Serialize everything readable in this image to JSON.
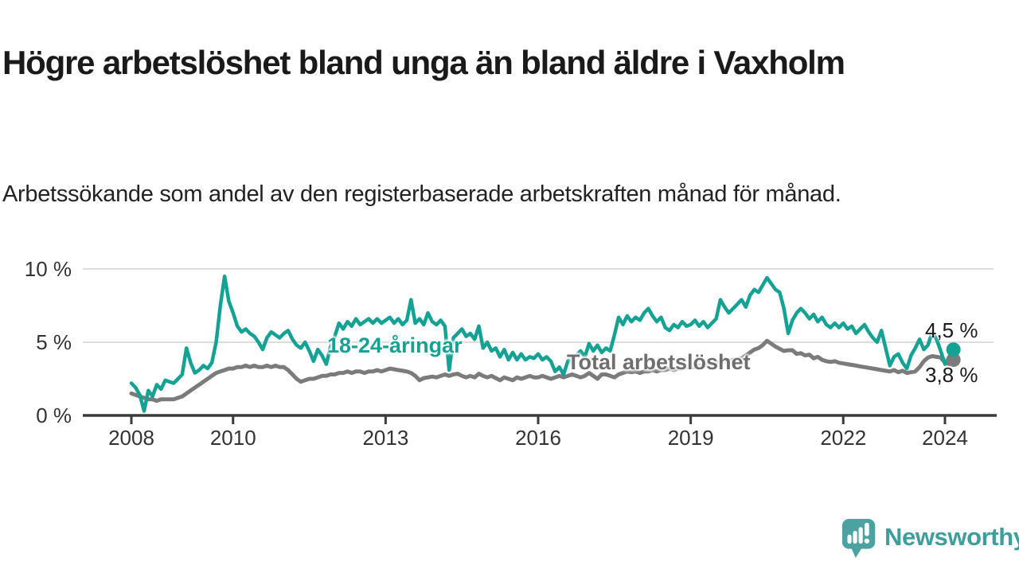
{
  "header": {
    "title": "Högre arbetslöshet bland unga än bland äldre i Vaxholm",
    "subtitle": "Arbetssökande som andel av den registerbaserade arbetskraften månad för månad."
  },
  "footer": {
    "brand": "Newsworthy"
  },
  "chart_data": {
    "type": "line",
    "title": "Högre arbetslöshet bland unga än bland äldre i Vaxholm",
    "subtitle": "Arbetssökande som andel av den registerbaserade arbetskraften månad för månad.",
    "grid": "horizontal-only",
    "legend_position": "inline-labels",
    "x_axis": {
      "start_year": 2008,
      "points_per_year": 12,
      "ticks": [
        {
          "value": 2008,
          "label": "2008"
        },
        {
          "value": 2010,
          "label": "2010"
        },
        {
          "value": 2013,
          "label": "2013"
        },
        {
          "value": 2016,
          "label": "2016"
        },
        {
          "value": 2019,
          "label": "2019"
        },
        {
          "value": 2022,
          "label": "2022"
        },
        {
          "value": 2024,
          "label": "2024"
        }
      ]
    },
    "y_axis": {
      "unit": "%",
      "range": [
        0,
        10.5
      ],
      "ticks": [
        {
          "value": 0,
          "label": "0 %"
        },
        {
          "value": 5,
          "label": "5 %"
        },
        {
          "value": 10,
          "label": "10 %"
        }
      ]
    },
    "colors": {
      "youth_line": "#14a294",
      "total_line": "#7b7b7b",
      "axis": "#3b3b3b",
      "gridline": "#dcdcdc"
    },
    "series": [
      {
        "name": "18-24-åringar",
        "color": "#14a294",
        "end_label": "4,5 %",
        "end_value": 4.5,
        "values": [
          2.2,
          1.9,
          1.4,
          0.3,
          1.7,
          1.3,
          2.1,
          1.8,
          2.4,
          2.3,
          2.2,
          2.5,
          2.8,
          4.6,
          3.6,
          2.9,
          3.1,
          3.4,
          3.2,
          3.6,
          5.0,
          7.5,
          9.5,
          7.8,
          7.0,
          6.1,
          5.7,
          5.9,
          5.6,
          5.4,
          5.0,
          4.5,
          5.3,
          5.7,
          5.5,
          5.3,
          5.6,
          5.8,
          5.2,
          4.8,
          4.6,
          5.0,
          4.4,
          3.7,
          4.5,
          4.1,
          3.5,
          4.7,
          5.4,
          6.3,
          5.9,
          6.4,
          6.1,
          6.6,
          6.2,
          6.4,
          6.6,
          6.3,
          6.6,
          6.3,
          6.5,
          6.7,
          6.3,
          6.6,
          6.2,
          6.5,
          7.9,
          6.3,
          6.6,
          6.2,
          7.0,
          6.4,
          6.2,
          6.5,
          6.1,
          3.1,
          5.3,
          5.6,
          5.9,
          5.4,
          5.6,
          5.2,
          6.1,
          4.6,
          5.0,
          4.4,
          4.6,
          4.0,
          4.5,
          3.8,
          4.3,
          3.8,
          4.2,
          3.8,
          4.0,
          3.9,
          4.2,
          3.8,
          4.0,
          3.7,
          3.0,
          3.3,
          2.8,
          3.7,
          3.9,
          4.1,
          4.4,
          4.0,
          4.9,
          4.4,
          4.8,
          4.3,
          4.6,
          4.4,
          5.5,
          6.7,
          6.2,
          6.8,
          6.4,
          6.7,
          6.5,
          7.0,
          7.3,
          6.8,
          6.4,
          6.7,
          6.0,
          5.8,
          6.2,
          6.0,
          6.4,
          6.1,
          6.2,
          6.5,
          6.1,
          6.4,
          6.0,
          6.3,
          6.6,
          7.9,
          7.4,
          7.0,
          7.3,
          7.6,
          7.9,
          7.4,
          8.2,
          8.6,
          8.4,
          8.9,
          9.4,
          9.0,
          8.6,
          8.4,
          7.3,
          5.6,
          6.5,
          7.0,
          7.3,
          7.0,
          6.6,
          6.9,
          6.4,
          6.7,
          6.2,
          6.0,
          6.3,
          6.0,
          6.3,
          5.9,
          6.1,
          5.6,
          5.9,
          6.2,
          5.7,
          5.3,
          5.0,
          5.8,
          4.6,
          3.4,
          4.0,
          4.2,
          3.6,
          3.2,
          4.1,
          4.6,
          5.2,
          4.5,
          4.8,
          5.7,
          5.2,
          4.4,
          3.5,
          4.0,
          4.5
        ]
      },
      {
        "name": "Total arbetslöshet",
        "color": "#7b7b7b",
        "end_label": "3,8 %",
        "end_value": 3.8,
        "values": [
          1.5,
          1.4,
          1.3,
          1.2,
          1.1,
          1.1,
          1.0,
          1.1,
          1.1,
          1.1,
          1.1,
          1.2,
          1.3,
          1.5,
          1.7,
          1.9,
          2.1,
          2.3,
          2.5,
          2.7,
          2.9,
          3.0,
          3.1,
          3.2,
          3.2,
          3.3,
          3.3,
          3.4,
          3.3,
          3.4,
          3.3,
          3.3,
          3.4,
          3.3,
          3.4,
          3.3,
          3.3,
          3.1,
          2.8,
          2.5,
          2.3,
          2.4,
          2.5,
          2.5,
          2.6,
          2.7,
          2.7,
          2.8,
          2.8,
          2.9,
          2.9,
          3.0,
          2.9,
          3.0,
          3.0,
          2.9,
          3.0,
          3.0,
          3.1,
          3.0,
          3.1,
          3.2,
          3.15,
          3.1,
          3.05,
          3.0,
          2.9,
          2.7,
          2.4,
          2.55,
          2.6,
          2.65,
          2.6,
          2.7,
          2.8,
          2.7,
          2.8,
          2.85,
          2.7,
          2.6,
          2.7,
          2.6,
          2.85,
          2.7,
          2.6,
          2.7,
          2.55,
          2.4,
          2.6,
          2.5,
          2.4,
          2.6,
          2.5,
          2.6,
          2.7,
          2.6,
          2.6,
          2.7,
          2.6,
          2.5,
          2.6,
          2.7,
          2.6,
          2.7,
          2.8,
          2.7,
          2.6,
          2.7,
          2.9,
          2.7,
          2.5,
          2.8,
          2.8,
          2.7,
          2.6,
          2.8,
          2.9,
          3.0,
          2.95,
          3.0,
          2.9,
          3.0,
          3.0,
          3.1,
          3.0,
          3.1,
          3.1,
          3.2,
          3.1,
          3.2,
          3.2,
          3.3,
          3.3,
          3.3,
          3.4,
          3.4,
          3.5,
          3.5,
          3.6,
          3.6,
          3.7,
          3.7,
          3.8,
          3.85,
          3.9,
          4.1,
          4.3,
          4.5,
          4.6,
          4.8,
          5.1,
          4.9,
          4.7,
          4.55,
          4.4,
          4.45,
          4.45,
          4.2,
          4.25,
          4.1,
          4.15,
          3.9,
          4.0,
          3.8,
          3.7,
          3.65,
          3.7,
          3.6,
          3.55,
          3.5,
          3.45,
          3.4,
          3.35,
          3.3,
          3.25,
          3.2,
          3.15,
          3.1,
          3.05,
          3.0,
          3.1,
          2.95,
          3.05,
          2.9,
          2.95,
          3.0,
          3.3,
          3.7,
          3.95,
          4.05,
          4.0,
          3.95,
          3.6,
          3.5,
          3.8
        ]
      }
    ]
  }
}
